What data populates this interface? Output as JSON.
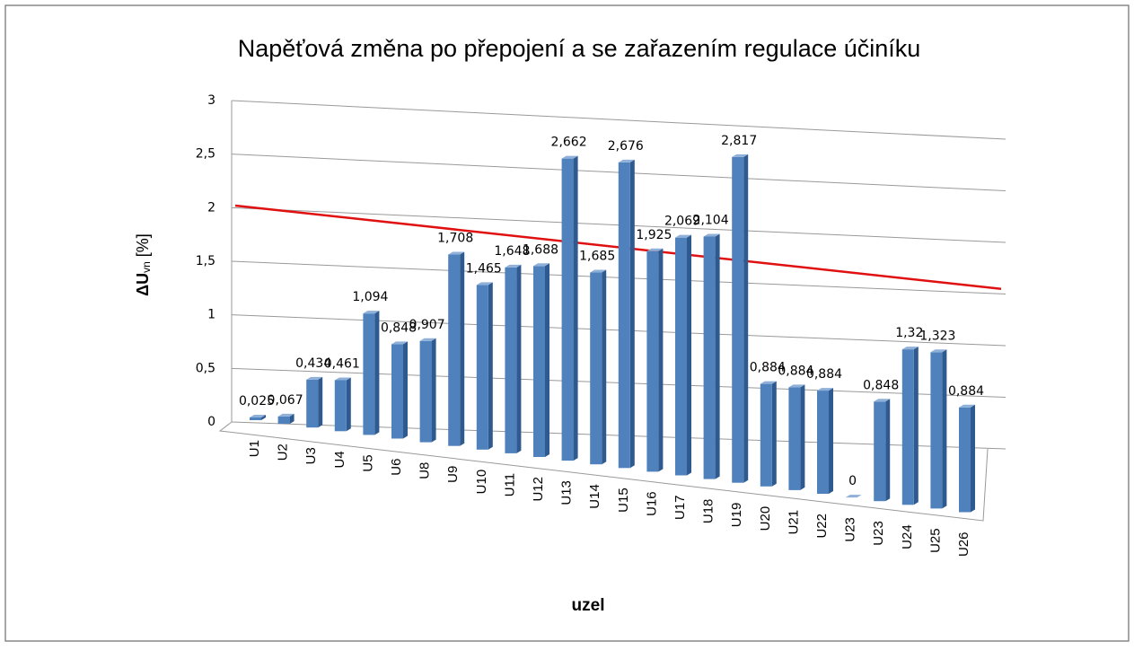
{
  "chart_data": {
    "type": "bar3d",
    "title": "Napěťová změna  po přepojení a se zařazením regulace účiníku",
    "x_label": "uzel",
    "y_label": {
      "main": "ΔU",
      "sub": "vn",
      "unit": " [%]"
    },
    "categories": [
      "U1",
      "U2",
      "U3",
      "U4",
      "U5",
      "U6",
      "U8",
      "U9",
      "U10",
      "U11",
      "U12",
      "U13",
      "U14",
      "U15",
      "U16",
      "U17",
      "U18",
      "U19",
      "U20",
      "U21",
      "U22",
      "U23",
      "U23",
      "U24",
      "U25",
      "U26"
    ],
    "values": [
      0.025,
      0.067,
      0.434,
      0.461,
      1.094,
      0.848,
      0.907,
      1.708,
      1.465,
      1.648,
      1.688,
      2.662,
      1.685,
      2.676,
      1.925,
      2.069,
      2.104,
      2.817,
      0.884,
      0.884,
      0.884,
      0,
      0.848,
      1.32,
      1.323,
      0.884
    ],
    "value_labels": [
      "0,025",
      "0,067",
      "0,434",
      "0,461",
      "1,094",
      "0,848",
      "0,907",
      "1,708",
      "1,465",
      "1,648",
      "1,688",
      "2,662",
      "1,685",
      "2,676",
      "1,925",
      "2,069",
      "2,104",
      "2,817",
      "0,884",
      "0,884",
      "0,884",
      "0",
      "0,848",
      "1,32",
      "1,323",
      "0,884"
    ],
    "color": "#4f81bd",
    "ylim": [
      0,
      3
    ],
    "yticks": [
      0,
      {
        "value": 0.5,
        "label": "0,5"
      },
      1,
      {
        "value": 1.5,
        "label": "1,5"
      },
      2,
      {
        "value": 2.5,
        "label": "2,5"
      },
      3
    ],
    "grid": true,
    "reference_line": {
      "values": [
        2.02,
        1.55
      ],
      "color": "#e01010"
    }
  }
}
